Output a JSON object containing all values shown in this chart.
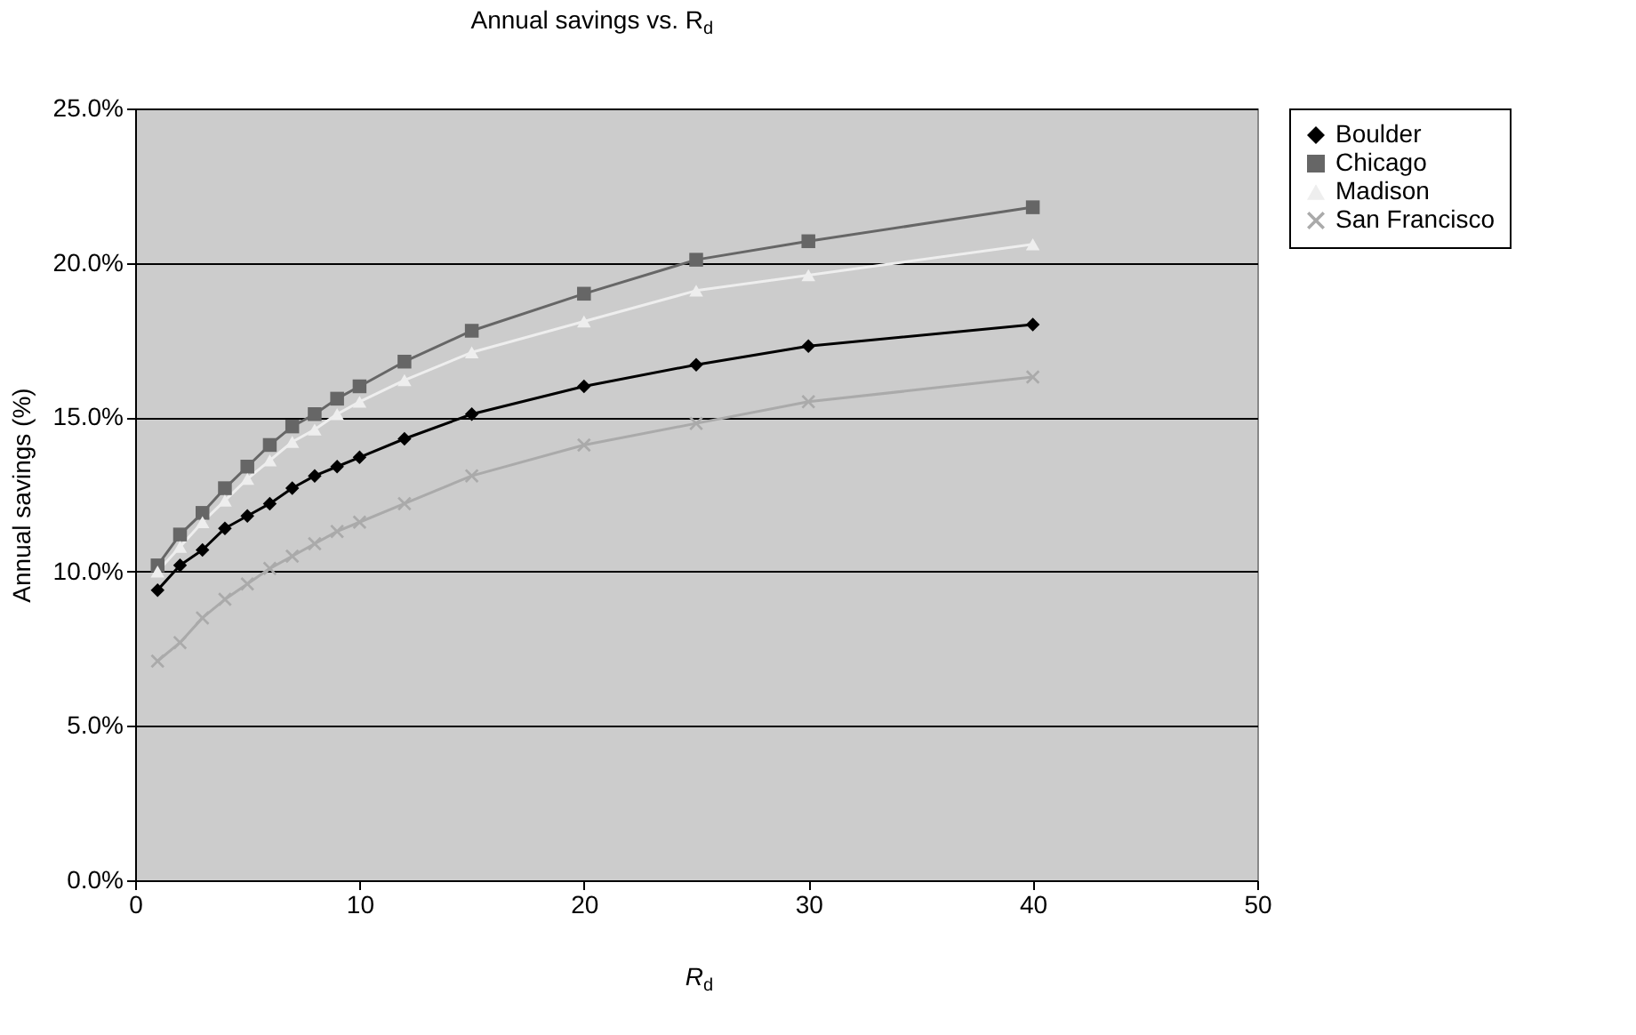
{
  "chart_data": {
    "type": "line",
    "title": "Annual savings vs. R$_{d}$",
    "xlabel": "R$_{d}$",
    "ylabel": "Annual savings (%)",
    "x": [
      1,
      2,
      3,
      4,
      5,
      6,
      7,
      8,
      9,
      10,
      12,
      15,
      20,
      25,
      30,
      40
    ],
    "series": [
      {
        "name": "Boulder",
        "color": "#000000",
        "marker": "diamond",
        "values": [
          9.4,
          10.2,
          10.7,
          11.4,
          11.8,
          12.2,
          12.7,
          13.1,
          13.4,
          13.7,
          14.3,
          15.1,
          16.0,
          16.7,
          17.3,
          18.0
        ]
      },
      {
        "name": "Chicago",
        "color": "#666666",
        "marker": "square",
        "values": [
          10.2,
          11.2,
          11.9,
          12.7,
          13.4,
          14.1,
          14.7,
          15.1,
          15.6,
          16.0,
          16.8,
          17.8,
          19.0,
          20.1,
          20.7,
          21.8
        ]
      },
      {
        "name": "Madison",
        "color": "#eeeeee",
        "marker": "triangle",
        "values": [
          10.0,
          10.8,
          11.6,
          12.3,
          13.0,
          13.6,
          14.2,
          14.6,
          15.1,
          15.5,
          16.2,
          17.1,
          18.1,
          19.1,
          19.6,
          20.6
        ]
      },
      {
        "name": "San Francisco",
        "color": "#aaaaaa",
        "marker": "cross",
        "values": [
          7.1,
          7.7,
          8.5,
          9.1,
          9.6,
          10.1,
          10.5,
          10.9,
          11.3,
          11.6,
          12.2,
          13.1,
          14.1,
          14.8,
          15.5,
          16.3
        ]
      }
    ],
    "xlim": [
      0,
      50
    ],
    "xticks": [
      0,
      10,
      20,
      30,
      40,
      50
    ],
    "ylim": [
      0,
      25
    ],
    "yticks": [
      {
        "value": 0,
        "label": "0.0%"
      },
      {
        "value": 5,
        "label": "5.0%"
      },
      {
        "value": 10,
        "label": "10.0%"
      },
      {
        "value": 15,
        "label": "15.0%"
      },
      {
        "value": 20,
        "label": "20.0%"
      },
      {
        "value": 25,
        "label": "25.0%"
      }
    ],
    "grid": "y",
    "legend": "right",
    "line_style": "solid"
  }
}
